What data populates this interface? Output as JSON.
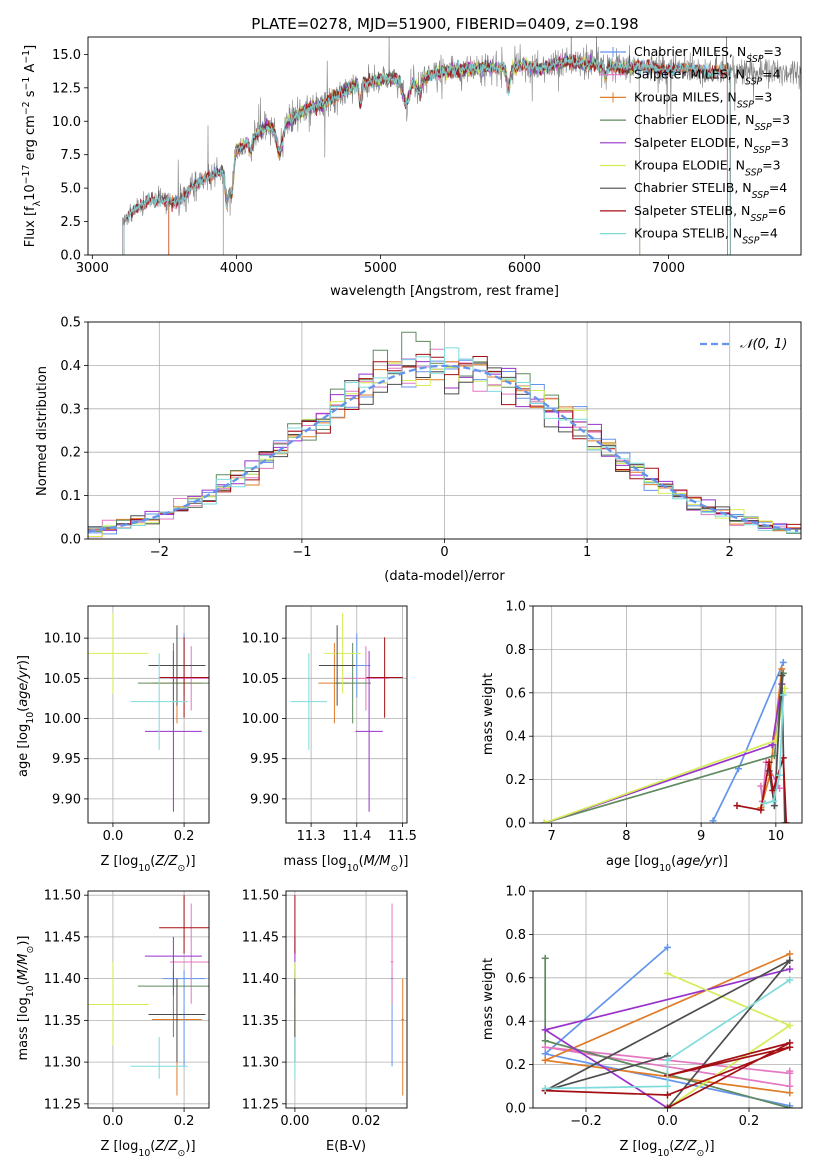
{
  "figure_title": "PLATE=0278, MJD=51900, FIBERID=0409, z=0.198",
  "palette": {
    "Chabrier MILES": "#6495ed",
    "Salpeter MILES": "#e377c2",
    "Kroupa MILES": "#e07b28",
    "Chabrier ELODIE": "#5f8a5f",
    "Salpeter ELODIE": "#9932cc",
    "Kroupa ELODIE": "#d4ed57",
    "Chabrier STELIB": "#4d4d4d",
    "Salpeter STELIB": "#a40f14",
    "Kroupa STELIB": "#7fdbdb"
  },
  "legend_top": [
    {
      "model": "Chabrier MILES",
      "label": "Chabrier MILES, N",
      "sub": "SSP",
      "n": "=3"
    },
    {
      "model": "Salpeter MILES",
      "label": "Salpeter MILES, N",
      "sub": "SSP",
      "n": "=4"
    },
    {
      "model": "Kroupa MILES",
      "label": "Kroupa MILES, N",
      "sub": "SSP",
      "n": "=3"
    },
    {
      "model": "Chabrier ELODIE",
      "label": "Chabrier ELODIE, N",
      "sub": "SSP",
      "n": "=3"
    },
    {
      "model": "Salpeter ELODIE",
      "label": "Salpeter ELODIE, N",
      "sub": "SSP",
      "n": "=3"
    },
    {
      "model": "Kroupa ELODIE",
      "label": "Kroupa ELODIE, N",
      "sub": "SSP",
      "n": "=3"
    },
    {
      "model": "Chabrier STELIB",
      "label": "Chabrier STELIB, N",
      "sub": "SSP",
      "n": "=4"
    },
    {
      "model": "Salpeter STELIB",
      "label": "Salpeter STELIB, N",
      "sub": "SSP",
      "n": "=6"
    },
    {
      "model": "Kroupa STELIB",
      "label": "Kroupa STELIB, N",
      "sub": "SSP",
      "n": "=4"
    }
  ],
  "chart_data": [
    {
      "id": "spectrum",
      "type": "line",
      "xlabel": "wavelength [Angstrom, rest frame]",
      "ylabel": "Flux [f_λ 10^-17 erg cm^-2 s^-1 A^-1]",
      "xlim": [
        2970,
        7920
      ],
      "ylim": [
        0,
        16.3
      ],
      "xticks": [
        3000,
        4000,
        5000,
        6000,
        7000
      ],
      "yticks": [
        0.0,
        2.5,
        5.0,
        7.5,
        10.0,
        12.5,
        15.0
      ],
      "grid": false,
      "legend_position": "upper-right",
      "observed_start_wavelength": 3210,
      "continuum": {
        "x": [
          3210,
          3300,
          3400,
          3500,
          3600,
          3700,
          3800,
          3900,
          3950,
          4000,
          4100,
          4200,
          4300,
          4400,
          4500,
          4600,
          4700,
          4800,
          4900,
          5000,
          5100,
          5200,
          5300,
          5400,
          5500,
          5600,
          5700,
          5800,
          5900,
          6000,
          6100,
          6200,
          6300,
          6400,
          6500,
          6600,
          6700,
          6800,
          6900,
          7000,
          7100,
          7200,
          7300,
          7400,
          7500,
          7600
        ],
        "y": [
          2.5,
          3.5,
          4.1,
          4.1,
          3.9,
          5.2,
          5.8,
          6.3,
          5.8,
          7.8,
          8.7,
          9.5,
          9.6,
          10.3,
          11.0,
          11.3,
          11.9,
          12.6,
          12.9,
          13.1,
          13.2,
          12.8,
          13.3,
          13.6,
          13.8,
          13.9,
          14.0,
          14.0,
          13.9,
          14.2,
          13.9,
          14.2,
          14.5,
          14.3,
          14.2,
          14.1,
          13.9,
          14.2,
          14.0,
          13.8,
          14.0,
          13.9,
          13.6,
          13.8,
          13.7,
          13.7
        ]
      },
      "model_fit_ranges": [
        {
          "model": "Chabrier MILES",
          "x_min": 3530,
          "x_max": 7410
        },
        {
          "model": "Salpeter MILES",
          "x_min": 3530,
          "x_max": 7410
        },
        {
          "model": "Kroupa MILES",
          "x_min": 3530,
          "x_max": 7410
        },
        {
          "model": "Chabrier ELODIE",
          "x_min": 3910,
          "x_max": 6800
        },
        {
          "model": "Salpeter ELODIE",
          "x_min": 3910,
          "x_max": 6800
        },
        {
          "model": "Kroupa ELODIE",
          "x_min": 3910,
          "x_max": 6800
        },
        {
          "model": "Chabrier STELIB",
          "x_min": 3220,
          "x_max": 7430
        },
        {
          "model": "Salpeter STELIB",
          "x_min": 3220,
          "x_max": 7430
        },
        {
          "model": "Kroupa STELIB",
          "x_min": 3220,
          "x_max": 7430
        }
      ]
    },
    {
      "id": "residuals",
      "type": "line",
      "xlabel": "(data-model)/error",
      "ylabel": "Normed distribution",
      "xlim": [
        -2.5,
        2.5
      ],
      "ylim": [
        0,
        0.5
      ],
      "xticks": [
        -2,
        -1,
        0,
        1,
        2
      ],
      "yticks": [
        0.0,
        0.1,
        0.2,
        0.3,
        0.4,
        0.5
      ],
      "grid": true,
      "legend_position": "upper-right",
      "reference_curve": {
        "label": "N(0,1)",
        "color": "#6495ed",
        "dash": "dashed"
      },
      "bin_width": 0.1,
      "series_hist_profile": "normal_pdf_with_scatter"
    },
    {
      "id": "age_vs_Z",
      "type": "scatter",
      "xlabel": "Z [log10(Z/Z_sun)]",
      "ylabel": "age  [log10(age/yr)]",
      "xlim": [
        -0.07,
        0.27
      ],
      "ylim": [
        9.87,
        10.14
      ],
      "xticks": [
        0.0,
        0.2
      ],
      "yticks": [
        9.9,
        9.95,
        10.0,
        10.05,
        10.1
      ],
      "grid": true
    },
    {
      "id": "age_vs_mass",
      "type": "scatter",
      "xlabel": "mass [log10(M/M_sun)]",
      "ylabel": "",
      "xlim": [
        11.245,
        11.51
      ],
      "ylim": [
        9.87,
        10.14
      ],
      "xticks": [
        11.3,
        11.4,
        11.5
      ],
      "yticks": [
        9.9,
        9.95,
        10.0,
        10.05,
        10.1
      ],
      "grid": true
    },
    {
      "id": "massweight_vs_age",
      "type": "line",
      "xlabel": "age  [log10(age/yr)]",
      "ylabel": "mass weight",
      "xlim": [
        6.75,
        10.35
      ],
      "ylim": [
        0,
        1.0
      ],
      "xticks": [
        7,
        8,
        9,
        10
      ],
      "yticks": [
        0.0,
        0.2,
        0.4,
        0.6,
        0.8,
        1.0
      ],
      "grid": true
    },
    {
      "id": "mass_vs_Z",
      "type": "scatter",
      "xlabel": "Z [log10(Z/Z_sun)]",
      "ylabel": "mass [log10(M/M_sun)]",
      "xlim": [
        -0.07,
        0.27
      ],
      "ylim": [
        11.245,
        11.505
      ],
      "xticks": [
        0.0,
        0.2
      ],
      "yticks": [
        11.25,
        11.3,
        11.35,
        11.4,
        11.45,
        11.5
      ],
      "grid": true
    },
    {
      "id": "mass_vs_EBV",
      "type": "scatter",
      "xlabel": "E(B-V)",
      "ylabel": "",
      "xlim": [
        -0.0025,
        0.0315
      ],
      "ylim": [
        11.245,
        11.505
      ],
      "xticks": [
        0.0,
        0.02
      ],
      "yticks": [
        11.25,
        11.3,
        11.35,
        11.4,
        11.45,
        11.5
      ],
      "grid": true
    },
    {
      "id": "massweight_vs_Z",
      "type": "line",
      "xlabel": "Z [log10(Z/Z_sun)]",
      "ylabel": "mass weight",
      "xlim": [
        -0.33,
        0.33
      ],
      "ylim": [
        0,
        1.0
      ],
      "xticks": [
        -0.2,
        0.0,
        0.2
      ],
      "yticks": [
        0.0,
        0.2,
        0.4,
        0.6,
        0.8,
        1.0
      ],
      "grid": true
    }
  ],
  "fit_results": [
    {
      "model": "Chabrier MILES",
      "Z": 0.2,
      "Z_err": 0.06,
      "age": 10.066,
      "age_err": 0.04,
      "mass": 11.4,
      "mass_err": 0.03,
      "ebv": 0.0273,
      "ebv_err": 0.0004,
      "mass_span": [
        11.295,
        11.41
      ],
      "ssp_age": [
        9.16,
        9.5,
        10.1
      ],
      "ssp_Z": [
        0.3,
        -0.3,
        0.0
      ],
      "ssp_w": [
        0.01,
        0.25,
        0.74
      ]
    },
    {
      "model": "Salpeter MILES",
      "Z": 0.22,
      "Z_err": 0.06,
      "age": 10.05,
      "age_err": 0.04,
      "mass": 11.42,
      "mass_err": 0.05,
      "ebv": 0.0273,
      "ebv_err": 0.0004,
      "mass_span": [
        11.37,
        11.49
      ],
      "ssp_age": [
        9.8,
        9.82,
        9.87,
        10.05
      ],
      "ssp_Z": [
        0.3,
        0.3,
        -0.3,
        0.3
      ],
      "ssp_w": [
        0.17,
        0.1,
        0.28,
        0.16
      ]
    },
    {
      "model": "Kroupa MILES",
      "Z": 0.18,
      "Z_err": 0.07,
      "age": 10.044,
      "age_err": 0.05,
      "mass": 11.351,
      "mass_err": 0.035,
      "ebv": 0.0303,
      "ebv_err": 0.0004,
      "mass_span": [
        11.26,
        11.4
      ],
      "ssp_age": [
        9.8,
        9.92,
        10.08
      ],
      "ssp_Z": [
        0.3,
        -0.3,
        0.3
      ],
      "ssp_w": [
        0.07,
        0.22,
        0.71
      ]
    },
    {
      "model": "Chabrier ELODIE",
      "Z": 0.17,
      "Z_err": 0.1,
      "age": 10.044,
      "age_err": 0.05,
      "mass": 11.391,
      "mass_err": 0.04,
      "ebv": 0.0,
      "ebv_err": 0.0001,
      "mass_span": [
        11.33,
        11.41
      ],
      "ssp_age": [
        6.9,
        9.98,
        10.1
      ],
      "ssp_Z": [
        0.3,
        -0.3,
        -0.3
      ],
      "ssp_w": [
        0.0,
        0.31,
        0.69
      ]
    },
    {
      "model": "Salpeter ELODIE",
      "Z": 0.17,
      "Z_err": 0.08,
      "age": 9.984,
      "age_err": 0.1,
      "mass": 11.427,
      "mass_err": 0.03,
      "ebv": 0.0,
      "ebv_err": 0.0001,
      "mass_span": [
        11.38,
        11.45
      ],
      "ssp_age": [
        6.9,
        9.95,
        10.08
      ],
      "ssp_Z": [
        0.0,
        -0.3,
        0.3
      ],
      "ssp_w": [
        0.0,
        0.36,
        0.64
      ]
    },
    {
      "model": "Kroupa ELODIE",
      "Z": 0.0,
      "Z_err": 0.1,
      "age": 10.081,
      "age_err": 0.05,
      "mass": 11.369,
      "mass_err": 0.04,
      "ebv": 0.0,
      "ebv_err": 0.0001,
      "mass_span": [
        11.32,
        11.42
      ],
      "ssp_age": [
        6.9,
        10.0,
        10.12
      ],
      "ssp_Z": [
        0.0,
        0.3,
        0.0
      ],
      "ssp_w": [
        0.0,
        0.38,
        0.62
      ]
    },
    {
      "model": "Chabrier STELIB",
      "Z": 0.18,
      "Z_err": 0.08,
      "age": 10.066,
      "age_err": 0.05,
      "mass": 11.357,
      "mass_err": 0.04,
      "ebv": 0.0,
      "ebv_err": 0.0001,
      "mass_span": [
        11.3,
        11.4
      ],
      "ssp_age": [
        9.91,
        9.98,
        10.08,
        10.12
      ],
      "ssp_Z": [
        0.0,
        -0.3,
        0.3,
        0.0
      ],
      "ssp_w": [
        0.24,
        0.08,
        0.68,
        0.0
      ]
    },
    {
      "model": "Salpeter STELIB",
      "Z": 0.2,
      "Z_err": 0.07,
      "age": 10.051,
      "age_err": 0.05,
      "mass": 11.461,
      "mass_err": 0.04,
      "ebv": 0.0,
      "ebv_err": 0.0001,
      "mass_span": [
        11.43,
        11.5
      ],
      "ssp_age": [
        9.48,
        9.8,
        9.91,
        9.96,
        10.1,
        10.14
      ],
      "ssp_Z": [
        -0.3,
        0.0,
        0.3,
        0.0,
        0.3,
        0.0
      ],
      "ssp_w": [
        0.08,
        0.06,
        0.28,
        0.15,
        0.3,
        0.0
      ]
    },
    {
      "model": "Kroupa STELIB",
      "Z": 0.13,
      "Z_err": 0.08,
      "age": 10.021,
      "age_err": 0.06,
      "mass": 11.295,
      "mass_err": 0.04,
      "ebv": 0.0,
      "ebv_err": 0.0001,
      "mass_span": [
        11.28,
        11.33
      ],
      "ssp_age": [
        9.84,
        9.97,
        10.05,
        10.1
      ],
      "ssp_Z": [
        -0.3,
        0.0,
        0.0,
        0.3
      ],
      "ssp_w": [
        0.09,
        0.1,
        0.22,
        0.59
      ]
    }
  ]
}
